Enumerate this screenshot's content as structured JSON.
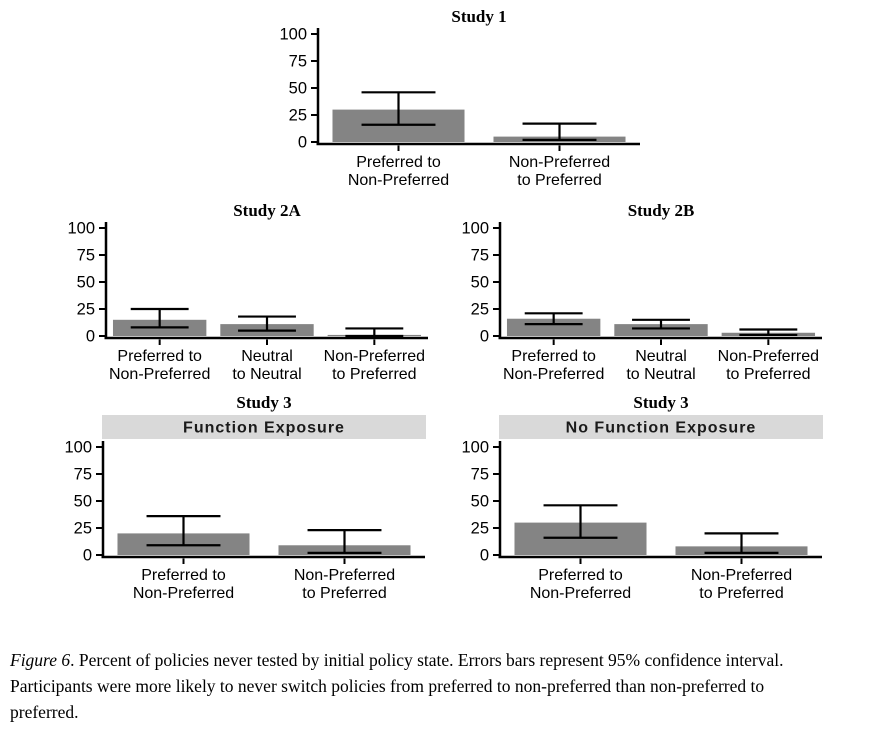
{
  "figure": {
    "caption_label": "Figure 6",
    "caption_text": ". Percent of policies never tested by initial policy state. Errors bars represent 95% confidence interval. Participants were more likely to never switch policies from preferred to non-preferred than non-preferred to preferred."
  },
  "colors": {
    "bar": "#848484",
    "strip_bg": "#d9d9d9",
    "axis": "#000000",
    "error_bar": "#000000",
    "background": "#ffffff"
  },
  "chart_data": [
    {
      "type": "bar",
      "title": "Study 1",
      "strip": null,
      "categories": [
        [
          "Preferred to",
          "Non-Preferred"
        ],
        [
          "Non-Preferred",
          "to Preferred"
        ]
      ],
      "values": [
        30,
        5
      ],
      "ci_low": [
        16,
        2
      ],
      "ci_high": [
        46,
        17
      ],
      "ylim": [
        0,
        100
      ],
      "yticks": [
        0,
        25,
        50,
        75,
        100
      ],
      "xlabel": "",
      "ylabel": "",
      "grid": false,
      "legend": false
    },
    {
      "type": "bar",
      "title": "Study 2A",
      "strip": null,
      "categories": [
        [
          "Preferred to",
          "Non-Preferred"
        ],
        [
          "Neutral",
          "to Neutral"
        ],
        [
          "Non-Preferred",
          "to Preferred"
        ]
      ],
      "values": [
        15,
        11,
        1
      ],
      "ci_low": [
        8,
        5,
        0
      ],
      "ci_high": [
        25,
        18,
        7
      ],
      "ylim": [
        0,
        100
      ],
      "yticks": [
        0,
        25,
        50,
        75,
        100
      ],
      "xlabel": "",
      "ylabel": "",
      "grid": false,
      "legend": false
    },
    {
      "type": "bar",
      "title": "Study 2B",
      "strip": null,
      "categories": [
        [
          "Preferred to",
          "Non-Preferred"
        ],
        [
          "Neutral",
          "to Neutral"
        ],
        [
          "Non-Preferred",
          "to Preferred"
        ]
      ],
      "values": [
        16,
        11,
        3
      ],
      "ci_low": [
        11,
        7,
        1
      ],
      "ci_high": [
        21,
        15,
        6
      ],
      "ylim": [
        0,
        100
      ],
      "yticks": [
        0,
        25,
        50,
        75,
        100
      ],
      "xlabel": "",
      "ylabel": "",
      "grid": false,
      "legend": false
    },
    {
      "type": "bar",
      "title": "Study 3",
      "strip": "Function Exposure",
      "categories": [
        [
          "Preferred to",
          "Non-Preferred"
        ],
        [
          "Non-Preferred",
          "to Preferred"
        ]
      ],
      "values": [
        20,
        9
      ],
      "ci_low": [
        9,
        2
      ],
      "ci_high": [
        36,
        23
      ],
      "ylim": [
        0,
        100
      ],
      "yticks": [
        0,
        25,
        50,
        75,
        100
      ],
      "xlabel": "",
      "ylabel": "",
      "grid": false,
      "legend": false
    },
    {
      "type": "bar",
      "title": "Study 3",
      "strip": "No Function Exposure",
      "categories": [
        [
          "Preferred to",
          "Non-Preferred"
        ],
        [
          "Non-Preferred",
          "to Preferred"
        ]
      ],
      "values": [
        30,
        8
      ],
      "ci_low": [
        16,
        2
      ],
      "ci_high": [
        46,
        20
      ],
      "ylim": [
        0,
        100
      ],
      "yticks": [
        0,
        25,
        50,
        75,
        100
      ],
      "xlabel": "",
      "ylabel": "",
      "grid": false,
      "legend": false
    }
  ]
}
